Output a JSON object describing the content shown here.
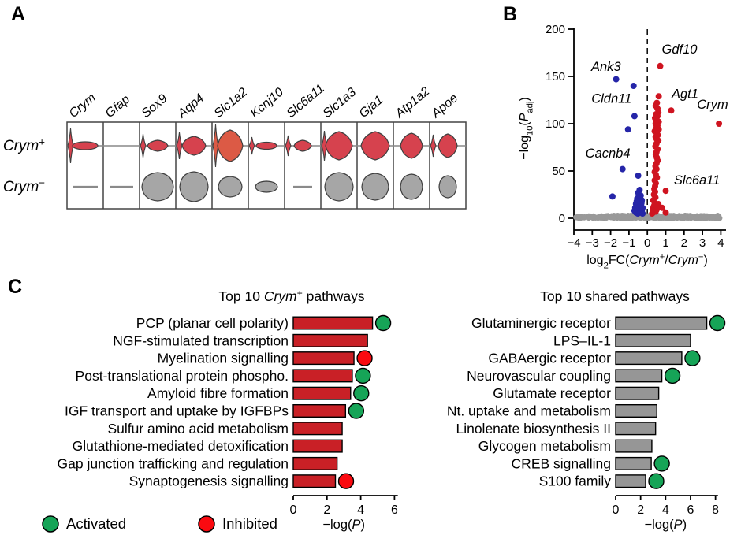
{
  "colors": {
    "red_bar": "#c92026",
    "gray_bar": "#969696",
    "violin_red": "#d6424e",
    "violin_red_alt": "#dc5a45",
    "violin_gray": "#a6a6a6",
    "point_up": "#cf1420",
    "point_down": "#2525a8",
    "point_ns": "#999999",
    "activated": "#16a457",
    "inhibited": "#fa0a10",
    "outline": "#000000",
    "violin_outline": "#3f3f3f"
  },
  "panels": {
    "a": {
      "letter": "A"
    },
    "b": {
      "letter": "B"
    },
    "c": {
      "letter": "C"
    }
  },
  "legend": {
    "items": [
      {
        "label": "Activated",
        "color_key": "activated"
      },
      {
        "label": "Inhibited",
        "color_key": "inhibited"
      }
    ]
  },
  "chart_data": [
    {
      "type": "violin",
      "genes": [
        "Crym",
        "Gfap",
        "Sox9",
        "Aqp4",
        "Slc1a2",
        "Kcnj10",
        "Slc6a11",
        "Slc1a3",
        "Gja1",
        "Atp1a2",
        "Apoe"
      ],
      "rows": [
        {
          "label_parts": [
            {
              "t": "Crym",
              "i": 1
            },
            {
              "t": "+",
              "v": -1
            }
          ],
          "color_key": "violin_red",
          "baseline_full": true,
          "violins": [
            {
              "shape": "ellipse",
              "hw": 16,
              "hh": 5,
              "spike": 22
            },
            {
              "shape": "none"
            },
            {
              "shape": "violin",
              "hw": 13,
              "hh": 7,
              "spike": 15
            },
            {
              "shape": "violin",
              "hw": 15,
              "hh": 12,
              "spike": 17
            },
            {
              "shape": "violin",
              "hw": 16,
              "hh": 20,
              "spike": 27,
              "color_key": "violin_red_alt"
            },
            {
              "shape": "ellipse",
              "hw": 13,
              "hh": 4.5,
              "spike": 11
            },
            {
              "shape": "violin",
              "hw": 11,
              "hh": 7,
              "spike": 13
            },
            {
              "shape": "violin",
              "hw": 17,
              "hh": 18,
              "spike": 19
            },
            {
              "shape": "violin",
              "hw": 18,
              "hh": 18
            },
            {
              "shape": "violin",
              "hw": 14,
              "hh": 16
            },
            {
              "shape": "violin",
              "hw": 12,
              "hh": 15,
              "spike": 14
            }
          ]
        },
        {
          "label_parts": [
            {
              "t": "Crym",
              "i": 1
            },
            {
              "t": "−",
              "v": -1
            }
          ],
          "color_key": "violin_gray",
          "baseline_full": false,
          "violins": [
            {
              "shape": "line",
              "hw": 16
            },
            {
              "shape": "line",
              "hw": 15
            },
            {
              "shape": "blob",
              "hw": 20,
              "hh": 18
            },
            {
              "shape": "blob",
              "hw": 18,
              "hh": 19
            },
            {
              "shape": "blob",
              "hw": 15,
              "hh": 13
            },
            {
              "shape": "blob",
              "hw": 14,
              "hh": 7
            },
            {
              "shape": "line",
              "hw": 12
            },
            {
              "shape": "blob",
              "hw": 18,
              "hh": 18
            },
            {
              "shape": "blob",
              "hw": 17,
              "hh": 17
            },
            {
              "shape": "blob",
              "hw": 14,
              "hh": 16
            },
            {
              "shape": "blob",
              "hw": 11,
              "hh": 14
            }
          ]
        }
      ]
    },
    {
      "type": "scatter",
      "x_ticks": [
        -4,
        -3,
        -2,
        -1,
        0,
        1,
        2,
        3,
        4
      ],
      "y_ticks": [
        0,
        50,
        100,
        150,
        200
      ],
      "xlim": [
        -4,
        4.3
      ],
      "ylim": [
        0,
        205
      ],
      "xlabel_parts": [
        {
          "t": "log"
        },
        {
          "t": "2",
          "v": 1
        },
        {
          "t": "FC("
        },
        {
          "t": "Crym",
          "i": 1
        },
        {
          "t": "+",
          "v": -1
        },
        {
          "t": "/"
        },
        {
          "t": "Crym",
          "i": 1
        },
        {
          "t": "−",
          "v": -1
        },
        {
          "t": ")"
        }
      ],
      "ylabel_parts": [
        {
          "t": "−log"
        },
        {
          "t": "10",
          "v": 1
        },
        {
          "t": "("
        },
        {
          "t": "P",
          "i": 1
        },
        {
          "t": "adj",
          "v": 1
        },
        {
          "t": ")"
        }
      ],
      "series": [
        {
          "name": "nonsignificant",
          "color_key": "point_ns",
          "r": 3.2,
          "generate": {
            "count": 420,
            "seed": 12345,
            "x_min": -3.9,
            "x_max": 3.95,
            "y_max": 3.2
          }
        },
        {
          "name": "down_in_crym_pos",
          "color_key": "point_down",
          "r": 4,
          "points": [
            [
              -1.7,
              147
            ],
            [
              -0.75,
              140
            ],
            [
              -0.7,
              108
            ],
            [
              -1.05,
              94
            ],
            [
              -1.35,
              52
            ],
            [
              -0.5,
              45
            ],
            [
              -1.9,
              23
            ],
            [
              -0.42,
              30
            ],
            [
              -0.5,
              27
            ],
            [
              -0.36,
              24
            ],
            [
              -0.55,
              21
            ],
            [
              -0.3,
              19
            ],
            [
              -0.46,
              17
            ],
            [
              -0.62,
              15
            ],
            [
              -0.36,
              13
            ],
            [
              -0.5,
              12
            ],
            [
              -0.26,
              11
            ],
            [
              -0.42,
              10
            ],
            [
              -0.56,
              9
            ],
            [
              -0.3,
              8
            ],
            [
              -0.46,
              7
            ],
            [
              -0.36,
              6
            ],
            [
              -0.62,
              6
            ],
            [
              -0.26,
              5
            ],
            [
              -0.52,
              5
            ],
            [
              -0.4,
              14
            ],
            [
              -0.32,
              16
            ],
            [
              -0.66,
              11
            ],
            [
              -0.7,
              8
            ],
            [
              -0.45,
              22
            ],
            [
              -0.58,
              18
            ]
          ]
        },
        {
          "name": "up_in_crym_pos",
          "color_key": "point_up",
          "r": 4,
          "points": [
            [
              0.7,
              161
            ],
            [
              0.62,
              129
            ],
            [
              0.52,
              122
            ],
            [
              0.45,
              119
            ],
            [
              0.55,
              116
            ],
            [
              1.3,
              114
            ],
            [
              0.6,
              112
            ],
            [
              0.48,
              110
            ],
            [
              0.55,
              108
            ],
            [
              0.42,
              106
            ],
            [
              0.5,
              104
            ],
            [
              0.62,
              102
            ],
            [
              0.45,
              100
            ],
            [
              3.9,
              100
            ],
            [
              0.55,
              98
            ],
            [
              0.5,
              96
            ],
            [
              0.62,
              94
            ],
            [
              0.4,
              92
            ],
            [
              0.52,
              90
            ],
            [
              0.57,
              88
            ],
            [
              0.45,
              86
            ],
            [
              0.5,
              84
            ],
            [
              0.6,
              82
            ],
            [
              0.5,
              79
            ],
            [
              0.44,
              76
            ],
            [
              0.56,
              73
            ],
            [
              0.5,
              70
            ],
            [
              0.46,
              67
            ],
            [
              0.52,
              64
            ],
            [
              0.56,
              61
            ],
            [
              0.5,
              58
            ],
            [
              0.44,
              55
            ],
            [
              0.5,
              52
            ],
            [
              0.4,
              49
            ],
            [
              0.46,
              46
            ],
            [
              0.52,
              43
            ],
            [
              0.4,
              40
            ],
            [
              0.46,
              37
            ],
            [
              0.42,
              34
            ],
            [
              1.0,
              29
            ],
            [
              0.38,
              31
            ],
            [
              0.42,
              28
            ],
            [
              0.36,
              25
            ],
            [
              0.44,
              22
            ],
            [
              0.32,
              19
            ],
            [
              0.4,
              16
            ],
            [
              0.36,
              13
            ],
            [
              0.3,
              10
            ],
            [
              0.8,
              11
            ],
            [
              0.34,
              8
            ],
            [
              0.3,
              6
            ],
            [
              1.0,
              6
            ],
            [
              0.26,
              5
            ],
            [
              0.45,
              7
            ],
            [
              0.5,
              9
            ],
            [
              0.55,
              12
            ],
            [
              0.6,
              15
            ]
          ]
        }
      ],
      "annotations": [
        {
          "text": "Ank3",
          "x": -2.25,
          "y": 156
        },
        {
          "text": "Gdf10",
          "x": 1.75,
          "y": 174
        },
        {
          "text": "Cldn11",
          "x": -1.95,
          "y": 122
        },
        {
          "text": "Agt1",
          "x": 2.05,
          "y": 127
        },
        {
          "text": "Crym",
          "x": 3.55,
          "y": 116
        },
        {
          "text": "Cacnb4",
          "x": -2.15,
          "y": 64
        },
        {
          "text": "Slc6a11",
          "x": 2.7,
          "y": 36
        }
      ]
    },
    {
      "type": "bar",
      "orientation": "horizontal",
      "title_parts": [
        {
          "t": "Top 10 "
        },
        {
          "t": "Crym",
          "i": 1
        },
        {
          "t": "+",
          "v": -1
        },
        {
          "t": " pathways"
        }
      ],
      "categories": [
        "PCP (planar cell polarity)",
        "NGF-stimulated transcription",
        "Myelination signalling",
        "Post-translational protein phospho.",
        "Amyloid fibre formation",
        "IGF transport and uptake by IGFBPs",
        "Sulfur amino acid metabolism",
        "Glutathione-mediated detoxification",
        "Gap junction trafficking and regulation",
        "Synaptogenesis signalling"
      ],
      "values": [
        4.7,
        4.4,
        3.6,
        3.5,
        3.4,
        3.1,
        2.9,
        2.9,
        2.6,
        2.5
      ],
      "markers": [
        "activated",
        null,
        "inhibited",
        "activated",
        "activated",
        "activated",
        null,
        null,
        null,
        "inhibited"
      ],
      "bar_color_key": "red_bar",
      "x_ticks": [
        0,
        2,
        4,
        6
      ],
      "xlim": [
        0,
        6.2
      ],
      "xlabel_parts": [
        {
          "t": "−log("
        },
        {
          "t": "P",
          "i": 1
        },
        {
          "t": ")"
        }
      ]
    },
    {
      "type": "bar",
      "orientation": "horizontal",
      "title_parts": [
        {
          "t": "Top 10 shared pathways"
        }
      ],
      "categories": [
        "Glutaminergic receptor",
        "LPS–IL-1",
        "GABAergic receptor",
        "Neurovascular coupling",
        "Glutamate receptor",
        "Nt. uptake and metabolism",
        "Linolenate biosynthesis II",
        "Glycogen metabolism",
        "CREB signalling",
        "S100 family"
      ],
      "values": [
        7.3,
        6.0,
        5.3,
        3.7,
        3.45,
        3.3,
        3.2,
        2.9,
        2.85,
        2.4
      ],
      "markers": [
        "activated",
        null,
        "activated",
        "activated",
        null,
        null,
        null,
        null,
        "activated",
        "activated"
      ],
      "bar_color_key": "gray_bar",
      "x_ticks": [
        0,
        2,
        4,
        6,
        8
      ],
      "xlim": [
        0,
        8.2
      ],
      "xlabel_parts": [
        {
          "t": "−log("
        },
        {
          "t": "P",
          "i": 1
        },
        {
          "t": ")"
        }
      ]
    }
  ]
}
